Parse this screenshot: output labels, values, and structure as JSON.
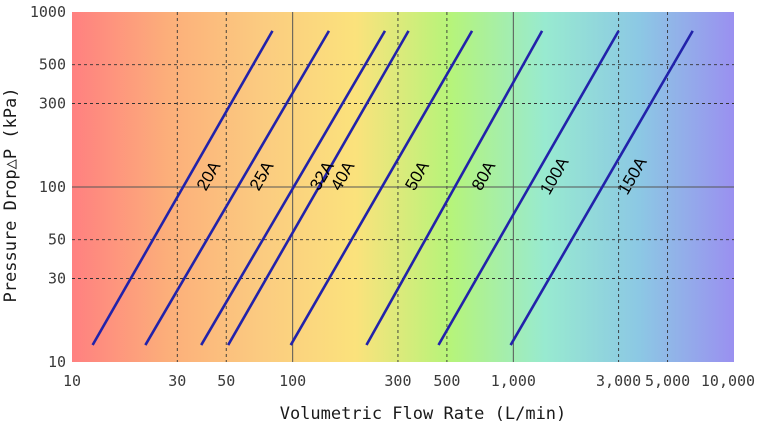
{
  "chart_data": {
    "type": "line",
    "title": "",
    "xlabel": "Volumetric Flow Rate (L/min)",
    "ylabel": "Pressure Drop△P (kPa)",
    "x_scale": "log",
    "y_scale": "log",
    "xlim": [
      10,
      10000
    ],
    "ylim": [
      10,
      1000
    ],
    "x_ticks": [
      {
        "value": 10,
        "label": "10"
      },
      {
        "value": 30,
        "label": "30"
      },
      {
        "value": 50,
        "label": "50"
      },
      {
        "value": 100,
        "label": "100"
      },
      {
        "value": 300,
        "label": "300"
      },
      {
        "value": 500,
        "label": "500"
      },
      {
        "value": 1000,
        "label": "1,000"
      },
      {
        "value": 3000,
        "label": "3,000"
      },
      {
        "value": 5000,
        "label": "5,000"
      },
      {
        "value": 10000,
        "label": "10,000"
      }
    ],
    "y_ticks": [
      {
        "value": 10,
        "label": "10"
      },
      {
        "value": 30,
        "label": "30"
      },
      {
        "value": 50,
        "label": "50"
      },
      {
        "value": 100,
        "label": "100"
      },
      {
        "value": 300,
        "label": "300"
      },
      {
        "value": 500,
        "label": "500"
      },
      {
        "value": 1000,
        "label": "1000"
      }
    ],
    "grid": {
      "solid_x": [
        100,
        1000
      ],
      "dashed_x": [
        30,
        50,
        300,
        500,
        3000,
        5000
      ],
      "solid_y": [
        100
      ],
      "dashed_y": [
        30,
        50,
        300,
        500
      ]
    },
    "series_color": "#2222aa",
    "series": [
      {
        "name": "20A",
        "x": [
          12.4,
          81
        ],
        "y": [
          12.5,
          780
        ],
        "label_at": {
          "x": 42,
          "y": 115
        }
      },
      {
        "name": "25A",
        "x": [
          21.5,
          146
        ],
        "y": [
          12.5,
          780
        ],
        "label_at": {
          "x": 73,
          "y": 115
        }
      },
      {
        "name": "32A",
        "x": [
          38.5,
          262
        ],
        "y": [
          12.5,
          780
        ],
        "label_at": {
          "x": 137,
          "y": 115
        }
      },
      {
        "name": "40A",
        "x": [
          51,
          335
        ],
        "y": [
          12.5,
          780
        ],
        "label_at": {
          "x": 170,
          "y": 115
        }
      },
      {
        "name": "50A",
        "x": [
          98,
          650
        ],
        "y": [
          12.5,
          780
        ],
        "label_at": {
          "x": 370,
          "y": 115
        }
      },
      {
        "name": "80A",
        "x": [
          216,
          1350
        ],
        "y": [
          12.5,
          780
        ],
        "label_at": {
          "x": 740,
          "y": 115
        }
      },
      {
        "name": "100A",
        "x": [
          458,
          3000
        ],
        "y": [
          12.5,
          780
        ],
        "label_at": {
          "x": 1550,
          "y": 115
        }
      },
      {
        "name": "150A",
        "x": [
          972,
          6500
        ],
        "y": [
          12.5,
          780
        ],
        "label_at": {
          "x": 3500,
          "y": 115
        }
      }
    ],
    "background_gradient": [
      "#ff8080",
      "#fcae7a",
      "#fbcb80",
      "#fbe27c",
      "#b6f47a",
      "#98ead0",
      "#8cc8e4",
      "#9a90f0"
    ]
  }
}
